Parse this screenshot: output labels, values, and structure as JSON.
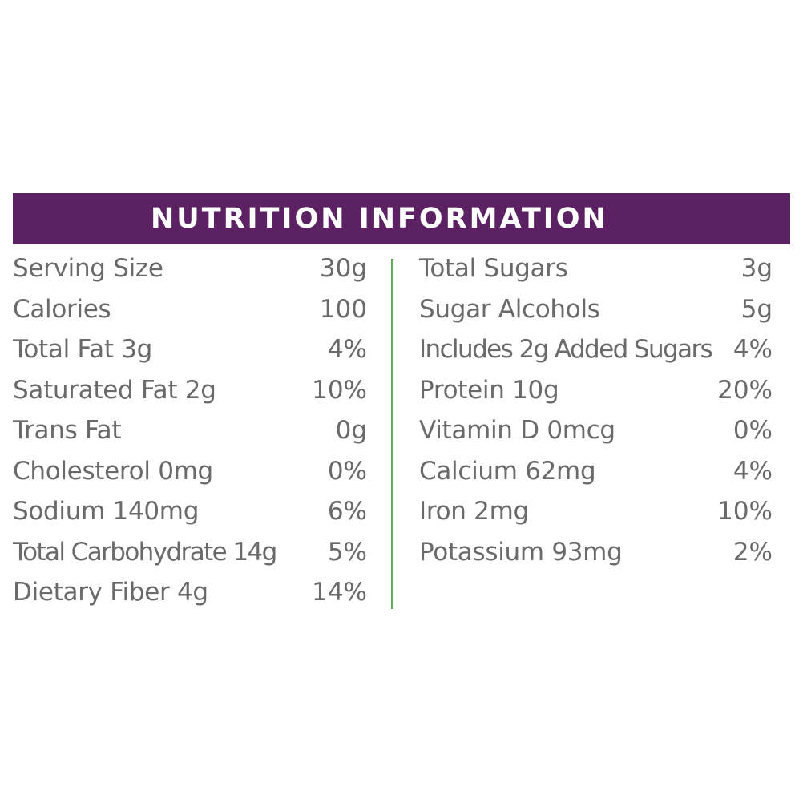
{
  "header": {
    "title": "NUTRITION INFORMATION"
  },
  "colors": {
    "header_bg": "#5b2162",
    "text": "#6a6a6a",
    "divider": "#6aa85f"
  },
  "left_column": [
    {
      "label": "Serving Size",
      "value": "30g"
    },
    {
      "label": "Calories",
      "value": "100"
    },
    {
      "label": "Total Fat 3g",
      "value": "4%"
    },
    {
      "label": "Saturated Fat 2g",
      "value": "10%"
    },
    {
      "label": "Trans Fat",
      "value": "0g"
    },
    {
      "label": "Cholesterol 0mg",
      "value": "0%"
    },
    {
      "label": "Sodium 140mg",
      "value": "6%"
    },
    {
      "label": "Total Carbohydrate 14g",
      "value": "5%"
    },
    {
      "label": "Dietary Fiber 4g",
      "value": "14%"
    }
  ],
  "right_column": [
    {
      "label": "Total Sugars",
      "value": "3g"
    },
    {
      "label": "Sugar Alcohols",
      "value": "5g"
    },
    {
      "label": "Includes 2g Added Sugars",
      "value": "4%"
    },
    {
      "label": "Protein 10g",
      "value": "20%"
    },
    {
      "label": "Vitamin D 0mcg",
      "value": "0%"
    },
    {
      "label": "Calcium 62mg",
      "value": "4%"
    },
    {
      "label": "Iron 2mg",
      "value": "10%"
    },
    {
      "label": "Potassium 93mg",
      "value": "2%"
    }
  ]
}
